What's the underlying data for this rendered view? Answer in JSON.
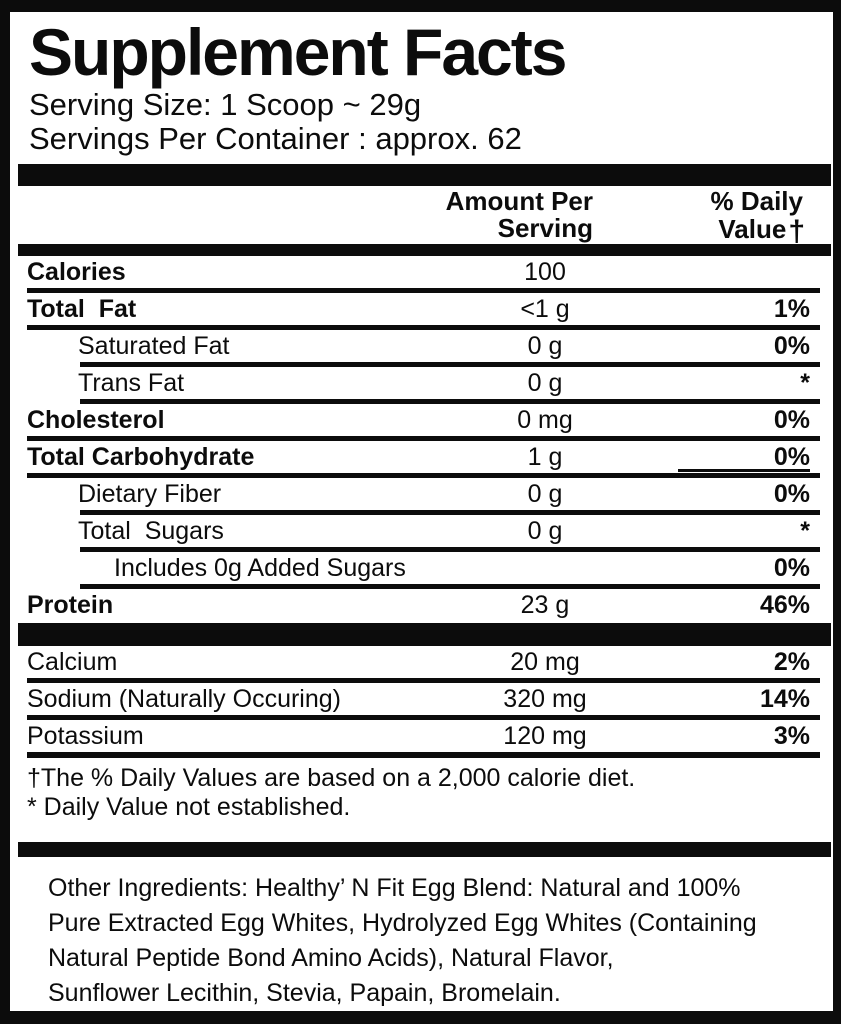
{
  "title": "Supplement Facts",
  "serving": {
    "size": "Serving Size: 1 Scoop ~ 29g",
    "per_container": "Servings Per Container : approx. 62"
  },
  "header": {
    "amount_line1": "Amount Per",
    "amount_line2": "Serving",
    "dv_line1": "% Daily",
    "dv_line2": "Value",
    "dagger": "†"
  },
  "nutrients": [
    {
      "name": "Calories",
      "amount": "100",
      "dv": "",
      "indent": 0,
      "bold": true,
      "sep": "full"
    },
    {
      "name": "Total  Fat",
      "amount": "<1 g",
      "dv": "1%",
      "indent": 0,
      "bold": true,
      "sep": "full"
    },
    {
      "name": "Saturated Fat",
      "amount": "0 g",
      "dv": "0%",
      "indent": 1,
      "bold": false,
      "sep": "indent"
    },
    {
      "name": "Trans Fat",
      "amount": "0 g",
      "dv": "*",
      "indent": 1,
      "bold": false,
      "sep": "indent"
    },
    {
      "name": "Cholesterol",
      "amount": "0 mg",
      "dv": "0%",
      "indent": 0,
      "bold": true,
      "sep": "full"
    },
    {
      "name": "Total Carbohydrate",
      "amount": "1 g",
      "dv": "0%",
      "indent": 0,
      "bold": true,
      "sep": "full",
      "dv_underline": true
    },
    {
      "name": "Dietary Fiber",
      "amount": "0 g",
      "dv": "0%",
      "indent": 1,
      "bold": false,
      "sep": "indent"
    },
    {
      "name": "Total  Sugars",
      "amount": "0 g",
      "dv": "*",
      "indent": 1,
      "bold": false,
      "sep": "indent"
    },
    {
      "name": "Includes 0g Added Sugars",
      "amount": "",
      "dv": "0%",
      "indent": 2,
      "bold": false,
      "sep": "indent"
    },
    {
      "name": "Protein",
      "amount": "23 g",
      "dv": "46%",
      "indent": 0,
      "bold": true,
      "sep": "none"
    }
  ],
  "minerals": [
    {
      "name": "Calcium",
      "amount": "20 mg",
      "dv": "2%",
      "indent": 0,
      "bold": false,
      "sep": "full"
    },
    {
      "name": "Sodium (Naturally Occuring)",
      "amount": "320 mg",
      "dv": "14%",
      "indent": 0,
      "bold": false,
      "sep": "full"
    },
    {
      "name": "Potassium",
      "amount": "120 mg",
      "dv": "3%",
      "indent": 0,
      "bold": false,
      "sep": "full-thick"
    }
  ],
  "footnotes": {
    "daily_values": "†The % Daily Values are based on a 2,000 calorie diet.",
    "not_established": "* Daily Value not established."
  },
  "other_ingredients": {
    "lines": [
      "Other Ingredients: Healthy’ N Fit Egg Blend: Natural and 100%",
      "Pure Extracted Egg Whites, Hydrolyzed Egg Whites (Containing",
      "Natural Peptide Bond Amino Acids), Natural Flavor,",
      "Sunflower Lecithin, Stevia, Papain, Bromelain."
    ]
  },
  "colors": {
    "ink": "#0c0c0c",
    "paper": "#ffffff"
  }
}
